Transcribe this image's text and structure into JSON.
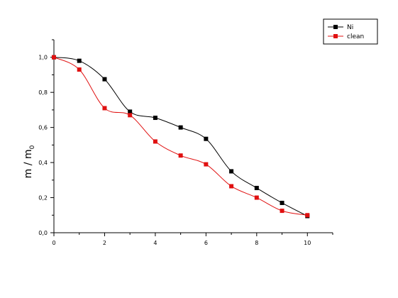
{
  "chart_data": {
    "type": "scatter",
    "xlabel": "",
    "ylabel_main": "m / m",
    "ylabel_sub": "0",
    "xlim": [
      0,
      11
    ],
    "ylim": [
      0,
      1.1
    ],
    "x_ticks": [
      {
        "value": 0,
        "label": "0"
      },
      {
        "value": 2,
        "label": "2"
      },
      {
        "value": 4,
        "label": "4"
      },
      {
        "value": 6,
        "label": "6"
      },
      {
        "value": 8,
        "label": "8"
      },
      {
        "value": 10,
        "label": "10"
      }
    ],
    "y_ticks": [
      {
        "value": 0.0,
        "label": "0,0"
      },
      {
        "value": 0.2,
        "label": "0,2"
      },
      {
        "value": 0.4,
        "label": "0,4"
      },
      {
        "value": 0.6,
        "label": "0,6"
      },
      {
        "value": 0.8,
        "label": "0,8"
      },
      {
        "value": 1.0,
        "label": "1,0"
      }
    ],
    "grid": false,
    "legend_position": "top-right",
    "series": [
      {
        "name": "Ni",
        "color": "#000000",
        "x": [
          0,
          1,
          2,
          3,
          4,
          5,
          6,
          7,
          8,
          9,
          10
        ],
        "y": [
          1.0,
          0.98,
          0.875,
          0.69,
          0.655,
          0.6,
          0.535,
          0.35,
          0.255,
          0.17,
          0.095
        ]
      },
      {
        "name": "clean",
        "color": "#e01010",
        "x": [
          0,
          1,
          2,
          3,
          4,
          5,
          6,
          7,
          8,
          9,
          10
        ],
        "y": [
          1.0,
          0.93,
          0.71,
          0.67,
          0.52,
          0.44,
          0.39,
          0.265,
          0.2,
          0.125,
          0.1
        ]
      }
    ]
  }
}
